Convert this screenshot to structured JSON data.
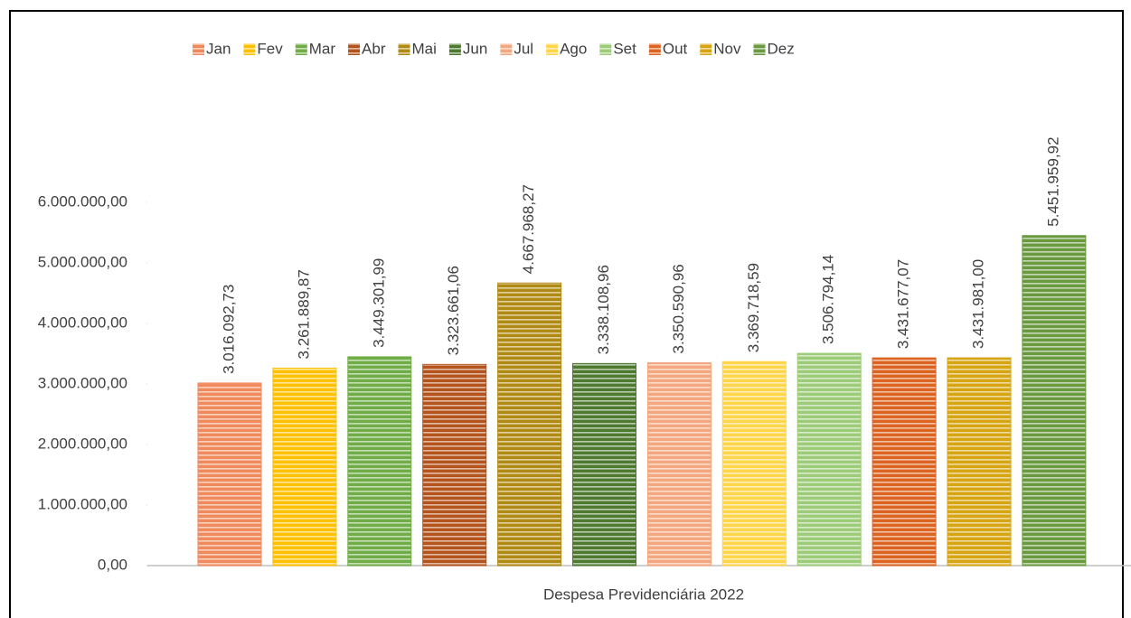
{
  "chart_data": {
    "type": "bar",
    "categories": [
      "Despesa Previdenciária 2022"
    ],
    "ylim": [
      0,
      6000000
    ],
    "yticks": [
      {
        "value": 0,
        "label": "0,00"
      },
      {
        "value": 1000000,
        "label": "1.000.000,00"
      },
      {
        "value": 2000000,
        "label": "2.000.000,00"
      },
      {
        "value": 3000000,
        "label": "3.000.000,00"
      },
      {
        "value": 4000000,
        "label": "4.000.000,00"
      },
      {
        "value": 5000000,
        "label": "5.000.000,00"
      },
      {
        "value": 6000000,
        "label": "6.000.000,00"
      }
    ],
    "legend": "top",
    "series": [
      {
        "name": "Jan",
        "color": "#f08a5d",
        "values": [
          3016092.73
        ],
        "value_labels": [
          "3.016.092,73"
        ]
      },
      {
        "name": "Fev",
        "color": "#ffc000",
        "values": [
          3261889.87
        ],
        "value_labels": [
          "3.261.889,87"
        ]
      },
      {
        "name": "Mar",
        "color": "#70ad47",
        "values": [
          3449301.99
        ],
        "value_labels": [
          "3.449.301,99"
        ]
      },
      {
        "name": "Abr",
        "color": "#b5531c",
        "values": [
          3323661.06
        ],
        "value_labels": [
          "3.323.661,06"
        ]
      },
      {
        "name": "Mai",
        "color": "#b08a12",
        "values": [
          4667968.27
        ],
        "value_labels": [
          "4.667.968,27"
        ]
      },
      {
        "name": "Jun",
        "color": "#4e7a30",
        "values": [
          3338108.96
        ],
        "value_labels": [
          "3.338.108,96"
        ]
      },
      {
        "name": "Jul",
        "color": "#f4a67e",
        "values": [
          3350590.96
        ],
        "value_labels": [
          "3.350.590,96"
        ]
      },
      {
        "name": "Ago",
        "color": "#ffd54a",
        "values": [
          3369718.59
        ],
        "value_labels": [
          "3.369.718,59"
        ]
      },
      {
        "name": "Set",
        "color": "#9ccc78",
        "values": [
          3506794.14
        ],
        "value_labels": [
          "3.506.794,14"
        ]
      },
      {
        "name": "Out",
        "color": "#dc6420",
        "values": [
          3431677.07
        ],
        "value_labels": [
          "3.431.677,07"
        ]
      },
      {
        "name": "Nov",
        "color": "#d6a511",
        "values": [
          3431981.0
        ],
        "value_labels": [
          "3.431.981,00"
        ]
      },
      {
        "name": "Dez",
        "color": "#6a9a40",
        "values": [
          5451959.92
        ],
        "value_labels": [
          "5.451.959,92"
        ]
      }
    ]
  }
}
